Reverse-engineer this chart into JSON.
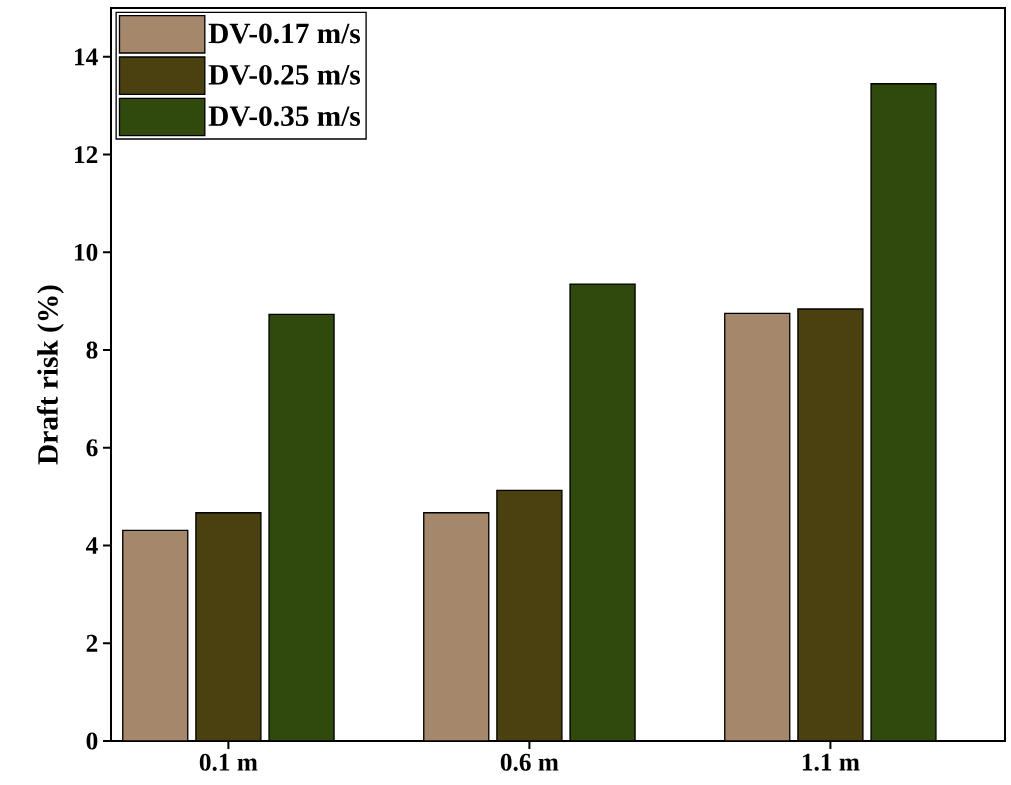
{
  "chart_data": {
    "type": "bar",
    "ylabel": "Draft risk (%)",
    "categories": [
      "0.1 m",
      "0.6 m",
      "1.1 m"
    ],
    "series": [
      {
        "name": "DV-0.17 m/s",
        "color": "#a5876b",
        "values": [
          4.31,
          4.67,
          8.75
        ]
      },
      {
        "name": "DV-0.25 m/s",
        "color": "#4b4010",
        "values": [
          4.67,
          5.13,
          8.84
        ]
      },
      {
        "name": "DV-0.35 m/s",
        "color": "#2f4a0c",
        "values": [
          8.73,
          9.35,
          13.45
        ]
      }
    ],
    "ylim": [
      0,
      15
    ],
    "yticks": [
      0,
      2,
      4,
      6,
      8,
      10,
      12,
      14
    ],
    "grid": false,
    "legend": "top left"
  }
}
